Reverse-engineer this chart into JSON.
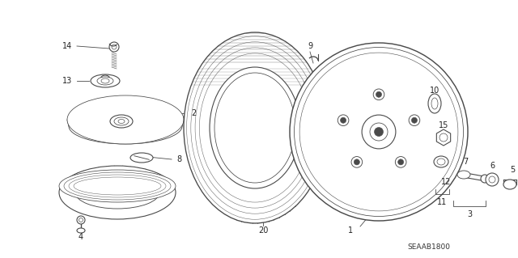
{
  "background_color": "#ffffff",
  "line_color": "#4a4a4a",
  "text_color": "#222222",
  "figsize": [
    6.4,
    3.19
  ],
  "dpi": 100,
  "diagram_ref": "SEAAB1800"
}
